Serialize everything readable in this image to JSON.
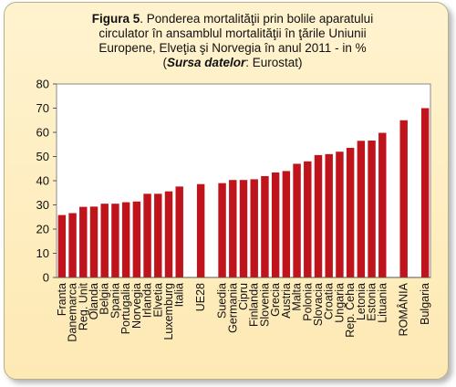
{
  "caption": {
    "label": "Figura  5",
    "line1": ". Ponderea mortalităţii prin bolile aparatului",
    "line2": "circulator în ansamblul mortalităţii  în ţările Uniunii",
    "line3": "Europene,   Elveţia şi Norvegia în anul 2011 - in %",
    "source_label": "Sursa datelor",
    "source_value": ": Eurostat)"
  },
  "chart_data": {
    "type": "bar",
    "title": "Figura  5. Ponderea mortalităţii prin bolile aparatului circulator în ansamblul mortalităţii  în ţările Uniunii Europene,   Elveţia şi Norvegia în anul 2011 - in %",
    "xlabel": "",
    "ylabel": "",
    "ylim": [
      0,
      80
    ],
    "yticks": [
      0,
      10,
      20,
      30,
      40,
      50,
      60,
      70,
      80
    ],
    "grid": false,
    "legend": "none",
    "bar_color": "#c0141c",
    "plot_background": "#ffffff",
    "categories": [
      "Franta",
      "Danemarca",
      "Reg. Unit",
      "Olanda",
      "Belgia",
      "Spania",
      "Portugalia",
      "Norvegia",
      "Irlanda",
      "Elvetia",
      "Luxemburg",
      "Italia",
      "",
      "UE28",
      "",
      "Suedia",
      "Germania",
      "Cipru",
      "Finlanda",
      "Slovenia",
      "Grecia",
      "Austria",
      "Malta",
      "Polonia",
      "Slovacia",
      "Croatia",
      "Ungaria",
      "Rep. Ceha",
      "Letonia",
      "Estonia",
      "Lituania",
      "",
      "ROMÂNIA",
      "",
      "Bulgaria"
    ],
    "values": [
      25.8,
      26.6,
      29.2,
      29.3,
      30.5,
      30.5,
      31.1,
      31.4,
      34.6,
      34.6,
      35.6,
      37.6,
      null,
      38.6,
      null,
      39.0,
      40.3,
      40.3,
      40.6,
      41.9,
      43.4,
      44.0,
      47.0,
      48.0,
      50.6,
      51.0,
      52.0,
      53.6,
      56.5,
      56.6,
      59.8,
      null,
      65.0,
      null,
      70.0
    ]
  }
}
